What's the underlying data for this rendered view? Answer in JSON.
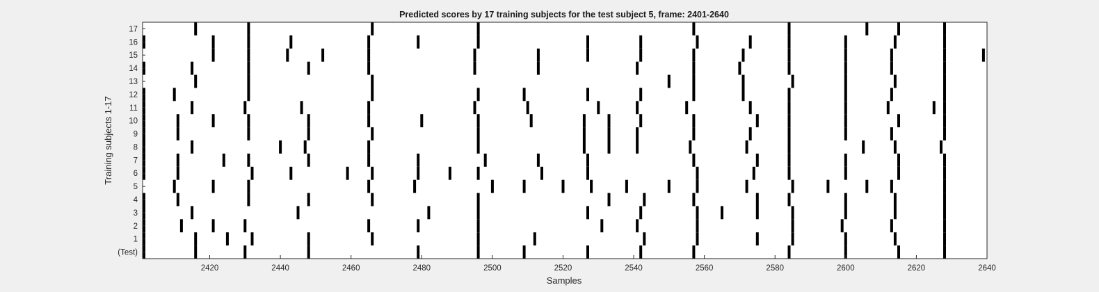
{
  "chart_data": {
    "type": "raster",
    "title": "Predicted scores by 17 training subjects for the test subject 5, frame: 2401-2640",
    "xlabel": "Samples",
    "ylabel": "Training subjects 1-17",
    "xlim": [
      2401,
      2640
    ],
    "xticks": [
      2420,
      2440,
      2460,
      2480,
      2500,
      2520,
      2540,
      2560,
      2580,
      2600,
      2620,
      2640
    ],
    "row_labels": [
      "(Test)",
      "1",
      "2",
      "3",
      "4",
      "5",
      "6",
      "7",
      "8",
      "9",
      "10",
      "11",
      "12",
      "13",
      "14",
      "15",
      "16",
      "17"
    ],
    "mark_color": "#000000",
    "background": "#ffffff",
    "rows": [
      {
        "label": "(Test)",
        "events": [
          2401,
          2416,
          2430,
          2448,
          2479,
          2496,
          2509,
          2527,
          2542,
          2557,
          2584,
          2600,
          2615,
          2628
        ]
      },
      {
        "label": "1",
        "events": [
          2401,
          2416,
          2425,
          2432,
          2448,
          2466,
          2496,
          2512,
          2543,
          2558,
          2575,
          2585,
          2600,
          2614,
          2628
        ]
      },
      {
        "label": "2",
        "events": [
          2400,
          2412,
          2421,
          2430,
          2465,
          2479,
          2496,
          2531,
          2541,
          2558,
          2585,
          2599,
          2613,
          2628
        ]
      },
      {
        "label": "3",
        "events": [
          2401,
          2415,
          2445,
          2482,
          2496,
          2527,
          2542,
          2558,
          2565,
          2575,
          2585,
          2600,
          2614,
          2628
        ]
      },
      {
        "label": "4",
        "events": [
          2401,
          2411,
          2431,
          2448,
          2466,
          2496,
          2533,
          2543,
          2557,
          2575,
          2584,
          2600,
          2614,
          2628
        ]
      },
      {
        "label": "5",
        "events": [
          2410,
          2421,
          2431,
          2465,
          2478,
          2500,
          2509,
          2520,
          2528,
          2538,
          2550,
          2558,
          2572,
          2585,
          2595,
          2606,
          2613,
          2628
        ]
      },
      {
        "label": "6",
        "events": [
          2401,
          2411,
          2432,
          2443,
          2459,
          2466,
          2479,
          2488,
          2496,
          2514,
          2527,
          2558,
          2574,
          2584,
          2600,
          2615,
          2628
        ]
      },
      {
        "label": "7",
        "events": [
          2400,
          2411,
          2424,
          2431,
          2448,
          2465,
          2479,
          2498,
          2513,
          2527,
          2557,
          2575,
          2584,
          2600,
          2615,
          2628
        ]
      },
      {
        "label": "8",
        "events": [
          2401,
          2415,
          2440,
          2447,
          2465,
          2496,
          2526,
          2533,
          2541,
          2556,
          2572,
          2584,
          2605,
          2614,
          2627
        ]
      },
      {
        "label": "9",
        "events": [
          2400,
          2411,
          2431,
          2448,
          2466,
          2496,
          2526,
          2533,
          2541,
          2557,
          2573,
          2584,
          2600,
          2613,
          2628
        ]
      },
      {
        "label": "10",
        "events": [
          2401,
          2411,
          2421,
          2431,
          2448,
          2465,
          2480,
          2496,
          2511,
          2526,
          2533,
          2542,
          2557,
          2575,
          2584,
          2600,
          2615,
          2628
        ]
      },
      {
        "label": "11",
        "events": [
          2400,
          2415,
          2430,
          2446,
          2465,
          2495,
          2510,
          2530,
          2541,
          2555,
          2573,
          2584,
          2600,
          2612,
          2625,
          2628
        ]
      },
      {
        "label": "12",
        "events": [
          2400,
          2410,
          2431,
          2466,
          2496,
          2509,
          2527,
          2542,
          2557,
          2571,
          2584,
          2600,
          2613,
          2628
        ]
      },
      {
        "label": "13",
        "events": [
          2416,
          2431,
          2466,
          2550,
          2557,
          2571,
          2585,
          2600,
          2614,
          2628
        ]
      },
      {
        "label": "14",
        "events": [
          2400,
          2415,
          2431,
          2448,
          2465,
          2495,
          2513,
          2541,
          2557,
          2570,
          2584,
          2600,
          2613,
          2628
        ]
      },
      {
        "label": "15",
        "events": [
          2421,
          2431,
          2442,
          2452,
          2465,
          2495,
          2513,
          2527,
          2542,
          2557,
          2571,
          2584,
          2600,
          2613,
          2628,
          2639
        ]
      },
      {
        "label": "16",
        "events": [
          2400,
          2421,
          2431,
          2443,
          2465,
          2479,
          2496,
          2527,
          2542,
          2558,
          2573,
          2584,
          2600,
          2614,
          2628
        ]
      },
      {
        "label": "17",
        "events": [
          2416,
          2431,
          2466,
          2496,
          2557,
          2584,
          2606,
          2615,
          2628
        ]
      }
    ]
  }
}
